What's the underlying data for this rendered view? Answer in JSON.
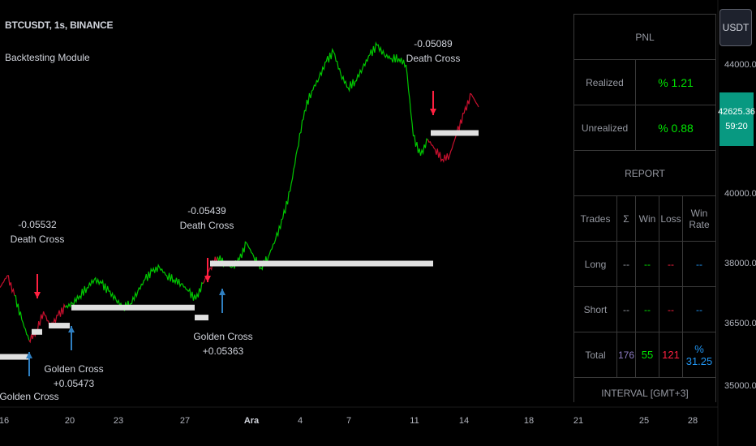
{
  "header": {
    "symbol_line": "BTCUSDT, 1s, BINANCE",
    "indicator_name": "Backtesting Module"
  },
  "currency_button": "USDT",
  "last_price": {
    "price": "42625.36",
    "countdown": "59:20",
    "color": "#089981"
  },
  "annotations": [
    {
      "id": "dc1",
      "lines": [
        "-0.05532",
        "Death Cross"
      ]
    },
    {
      "id": "gc1",
      "lines": [
        "Golden Cross",
        "+0.05473"
      ]
    },
    {
      "id": "dc2",
      "lines": [
        "-0.05439",
        "Death Cross"
      ]
    },
    {
      "id": "gc2",
      "lines": [
        "Golden Cross",
        "+0.05363"
      ]
    },
    {
      "id": "dc3",
      "lines": [
        "-0.05089",
        "Death Cross"
      ]
    },
    {
      "id": "gc0",
      "lines": [
        "Golden Cross"
      ]
    }
  ],
  "panel": {
    "pnl_title": "PNL",
    "realized_label": "Realized",
    "realized_value": "% 1.21",
    "unrealized_label": "Unrealized",
    "unrealized_value": "% 0.88",
    "report_title": "REPORT",
    "columns": [
      "Trades",
      "Σ",
      "Win",
      "Loss",
      "Win Rate"
    ],
    "rows": [
      {
        "label": "Long",
        "sum": "--",
        "win": "--",
        "loss": "--",
        "rate": "--"
      },
      {
        "label": "Short",
        "sum": "--",
        "win": "--",
        "loss": "--",
        "rate": "--"
      },
      {
        "label": "Total",
        "sum": "176",
        "win": "55",
        "loss": "121",
        "rate": "% 31.25"
      }
    ],
    "interval_label": "INTERVAL [GMT+3]"
  },
  "chart_data": {
    "type": "line",
    "title": "BTCUSDT, 1s, BINANCE",
    "y_axis": {
      "ticks": [
        44000.0,
        40000.0,
        38000.0,
        36500.0,
        35000.0
      ],
      "scale": "log-like"
    },
    "x_axis": {
      "ticks": [
        "16",
        "20",
        "23",
        "27",
        "Ara",
        "4",
        "7",
        "11",
        "14",
        "18",
        "21",
        "25",
        "28"
      ]
    },
    "series": [
      {
        "values": [
          37400,
          37700,
          37200,
          36600,
          36100,
          36300,
          36800,
          36400,
          36700,
          36900,
          37000,
          37200,
          37400,
          37600,
          37500,
          37300,
          37100,
          36900,
          37000,
          37300,
          37600,
          37800,
          37900,
          37700,
          37600,
          37500,
          37300,
          37100,
          37500,
          37900,
          38200,
          38000,
          37900,
          38100,
          38600,
          38200,
          37900,
          38200,
          38700,
          39300,
          40100,
          41400,
          42600,
          43200,
          43600,
          44100,
          44400,
          43700,
          43300,
          43500,
          43900,
          44300,
          44600,
          44300,
          44200,
          44200,
          44000,
          41800,
          41200,
          41700,
          41400,
          41100,
          41200,
          41900,
          42500,
          43100,
          42700
        ]
      }
    ],
    "trade_levels": [
      {
        "price": 35700,
        "x_from": "15",
        "x_to": "17.6",
        "color": "#e0e0e0"
      },
      {
        "price": 36300,
        "x_from": "17.7",
        "x_to": "18.3",
        "color": "#e0e0e0"
      },
      {
        "price": 36450,
        "x_from": "18.7",
        "x_to": "20",
        "color": "#e0e0e0"
      },
      {
        "price": 36900,
        "x_from": "20.1",
        "x_to": "27.6",
        "color": "#e0e0e0"
      },
      {
        "price": 36650,
        "x_from": "27.6",
        "x_to": "28.3",
        "color": "#e0e0e0"
      },
      {
        "price": 38000,
        "x_from": "28.4",
        "x_to": "10.5",
        "color": "#e0e0e0"
      },
      {
        "price": 41900,
        "x_from": "12",
        "x_to": "15.2",
        "color": "#e0e0e0"
      }
    ],
    "trades": [
      {
        "type": "Death Cross",
        "pnl": -0.05532,
        "at": "18"
      },
      {
        "type": "Golden Cross",
        "pnl": 0.05473,
        "at": "20"
      },
      {
        "type": "Death Cross",
        "pnl": -0.05439,
        "at": "28"
      },
      {
        "type": "Golden Cross",
        "pnl": 0.05363,
        "at": "28"
      },
      {
        "type": "Death Cross",
        "pnl": -0.05089,
        "at": "12"
      }
    ],
    "grid": false,
    "legend": "none"
  }
}
